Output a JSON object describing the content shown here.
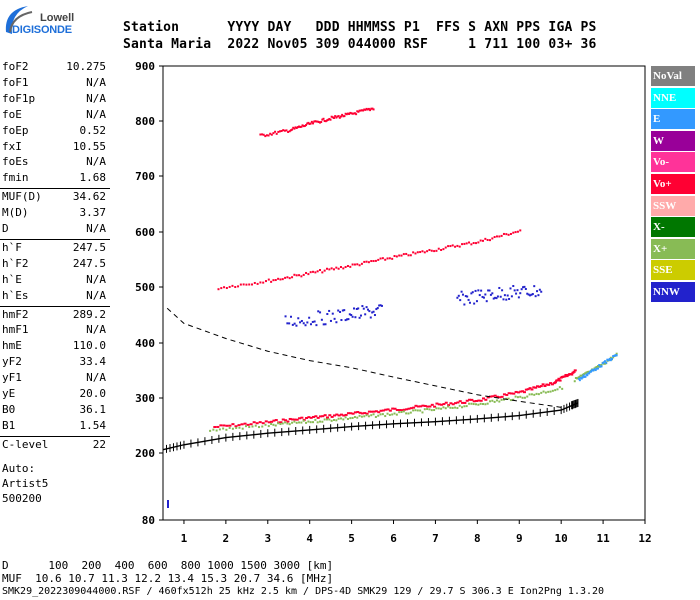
{
  "logo": {
    "line1": "Lowell",
    "line2": "DIGISONDE"
  },
  "header": {
    "labels": "Station      YYYY DAY   DDD HHMMSS P1  FFS S AXN PPS IGA PS",
    "values": "Santa Maria  2022 Nov05 309 044000 RSF     1 711 100 03+ 36"
  },
  "params": [
    {
      "name": "foF2",
      "value": "10.275"
    },
    {
      "name": "foF1",
      "value": "N/A"
    },
    {
      "name": "foF1p",
      "value": "N/A"
    },
    {
      "name": "foE",
      "value": "N/A"
    },
    {
      "name": "foEp",
      "value": "0.52"
    },
    {
      "name": "fxI",
      "value": "10.55"
    },
    {
      "name": "foEs",
      "value": "N/A"
    },
    {
      "name": "fmin",
      "value": "1.68"
    },
    {
      "name": "MUF(D)",
      "value": "34.62"
    },
    {
      "name": "M(D)",
      "value": "3.37"
    },
    {
      "name": "D",
      "value": "N/A"
    },
    {
      "name": "h`F",
      "value": "247.5"
    },
    {
      "name": "h`F2",
      "value": "247.5"
    },
    {
      "name": "h`E",
      "value": "N/A"
    },
    {
      "name": "h`Es",
      "value": "N/A"
    },
    {
      "name": "hmF2",
      "value": "289.2"
    },
    {
      "name": "hmF1",
      "value": "N/A"
    },
    {
      "name": "hmE",
      "value": "110.0"
    },
    {
      "name": "yF2",
      "value": "33.4"
    },
    {
      "name": "yF1",
      "value": "N/A"
    },
    {
      "name": "yE",
      "value": "20.0"
    },
    {
      "name": "B0",
      "value": "36.1"
    },
    {
      "name": "B1",
      "value": "1.54"
    },
    {
      "name": "C-level",
      "value": "22"
    }
  ],
  "autoscale": {
    "line1": "Auto:",
    "line2": "Artist5",
    "line3": "500200"
  },
  "legend": [
    {
      "label": "NoVal",
      "bg": "#808080",
      "fg": "#ffffff"
    },
    {
      "label": "NNE",
      "bg": "#00ffff",
      "fg": "#ffffff"
    },
    {
      "label": "E",
      "bg": "#3399ff",
      "fg": "#ffffff"
    },
    {
      "label": "W",
      "bg": "#990099",
      "fg": "#ffffff"
    },
    {
      "label": "Vo-",
      "bg": "#ff3399",
      "fg": "#ffffff"
    },
    {
      "label": "Vo+",
      "bg": "#ff0033",
      "fg": "#ffffff"
    },
    {
      "label": "SSW",
      "bg": "#ffaaaa",
      "fg": "#ffffff"
    },
    {
      "label": "X-",
      "bg": "#007700",
      "fg": "#ffffff"
    },
    {
      "label": "X+",
      "bg": "#88bb55",
      "fg": "#ffffff"
    },
    {
      "label": "SSE",
      "bg": "#cccc00",
      "fg": "#ffffff"
    },
    {
      "label": "NNW",
      "bg": "#2222cc",
      "fg": "#ffffff"
    }
  ],
  "footer": {
    "line1": "D      100  200  400  600  800 1000 1500 3000 [km]",
    "line2": "MUF  10.6 10.7 11.3 12.2 13.4 15.3 20.7 34.6 [MHz]",
    "line3": "SMK29_2022309044000.RSF / 460fx512h 25 kHz 2.5 km / DPS-4D SMK29 129 / 29.7 S 306.3 E Ion2Png 1.3.20"
  },
  "chart_data": {
    "type": "scatter",
    "xlim": [
      0.5,
      12
    ],
    "ylim": [
      80,
      900
    ],
    "xticks": [
      1,
      2,
      3,
      4,
      5,
      6,
      7,
      8,
      9,
      10,
      11,
      12
    ],
    "yticks": [
      80,
      200,
      300,
      400,
      500,
      600,
      700,
      800,
      900
    ],
    "xlabel": "",
    "ylabel": "",
    "series": [
      {
        "name": "Vo+",
        "color": "#ff0033",
        "traces": [
          {
            "x": [
              1.7,
              3,
              4,
              5,
              6,
              7,
              8,
              9,
              9.8,
              10.3
            ],
            "y": [
              249,
              258,
              266,
              273,
              281,
              289,
              298,
              312,
              330,
              350
            ]
          },
          {
            "x": [
              1.8,
              3,
              4,
              5,
              6,
              7,
              8,
              9
            ],
            "y": [
              500,
              513,
              527,
              541,
              556,
              570,
              584,
              604
            ]
          },
          {
            "x": [
              2.8,
              3.5,
              4,
              4.5,
              5,
              5.5
            ],
            "y": [
              775,
              785,
              797,
              807,
              815,
              825
            ]
          }
        ]
      },
      {
        "name": "X+",
        "color": "#88bb55",
        "traces": [
          {
            "x": [
              1.6,
              3,
              4,
              5,
              6,
              7,
              8,
              9,
              10
            ],
            "y": [
              243,
              252,
              259,
              266,
              273,
              281,
              291,
              303,
              320
            ]
          },
          {
            "x": [
              10.3,
              10.8,
              11.3
            ],
            "y": [
              335,
              355,
              380
            ]
          }
        ]
      },
      {
        "name": "NNW",
        "color": "#2222cc",
        "traces": [
          {
            "x": [
              3.4,
              4.7,
              5.7
            ],
            "y": [
              440,
              450,
              460
            ]
          },
          {
            "x": [
              7.5,
              8.5,
              9.5
            ],
            "y": [
              480,
              490,
              495
            ]
          }
        ]
      },
      {
        "name": "E",
        "color": "#3399ff",
        "traces": [
          {
            "x": [
              10.4,
              10.8,
              11.3
            ],
            "y": [
              335,
              355,
              380
            ]
          }
        ]
      },
      {
        "name": "profile",
        "color": "#000000",
        "traces": [
          {
            "x": [
              0.5,
              1,
              2,
              3,
              4,
              5,
              6,
              7,
              8,
              9,
              10,
              10.4,
              10.25
            ],
            "y": [
              206,
              215,
              228,
              236,
              242,
              248,
              253,
              257,
              262,
              268,
              278,
              291,
              287
            ]
          }
        ]
      },
      {
        "name": "topside",
        "color": "#000000",
        "traces": [
          {
            "x": [
              0.6,
              1,
              2,
              3,
              4,
              5,
              6,
              7,
              8,
              9,
              10
            ],
            "y": [
              462,
              435,
              408,
              385,
              368,
              355,
              338,
              322,
              306,
              294,
              283
            ]
          }
        ]
      }
    ]
  }
}
